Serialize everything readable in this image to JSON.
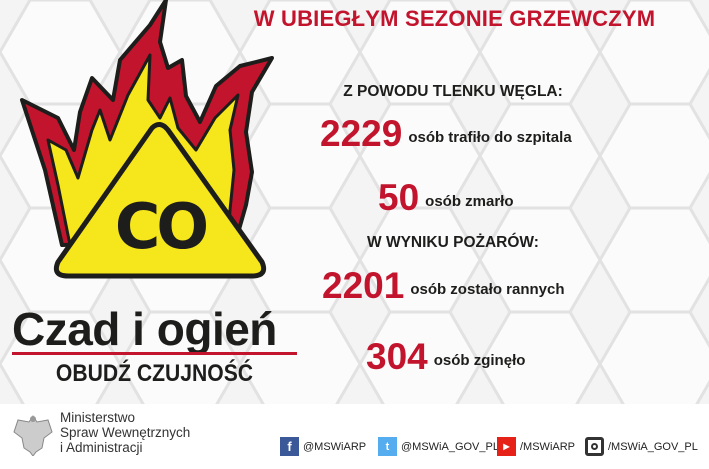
{
  "header": {
    "title": "W UBIEGŁYM SEZONIE GRZEWCZYM"
  },
  "co_section": {
    "heading": "Z POWODU TLENKU WĘGLA:",
    "stats": [
      {
        "value": "2229",
        "label": "osób trafiło do szpitala"
      },
      {
        "value": "50",
        "label": "osób zmarło"
      }
    ]
  },
  "fire_section": {
    "heading": "W WYNIKU POŻARÓW:",
    "stats": [
      {
        "value": "2201",
        "label": "osób zostało rannych"
      },
      {
        "value": "304",
        "label": "osób zginęło"
      }
    ]
  },
  "logo": {
    "symbol": "CO",
    "campaign": "Czad i ogień",
    "slogan": "OBUDŹ CZUJNOŚĆ"
  },
  "footer": {
    "ministry": [
      "Ministerstwo",
      "Spraw Wewnętrznych",
      "i Administracji"
    ],
    "social": [
      {
        "icon": "facebook-icon",
        "handle": "@MSWiARP",
        "color": "#3b5998"
      },
      {
        "icon": "twitter-icon",
        "handle": "@MSWiA_GOV_PL",
        "color": "#55acee"
      },
      {
        "icon": "youtube-icon",
        "handle": "/MSWiARP",
        "color": "#e62117"
      },
      {
        "icon": "instagram-icon",
        "handle": "/MSWiA_GOV_PL",
        "color": "#333333"
      }
    ]
  },
  "colors": {
    "accent": "#c3142d",
    "flame_yellow": "#f6e61c",
    "text": "#1d1d1b"
  }
}
